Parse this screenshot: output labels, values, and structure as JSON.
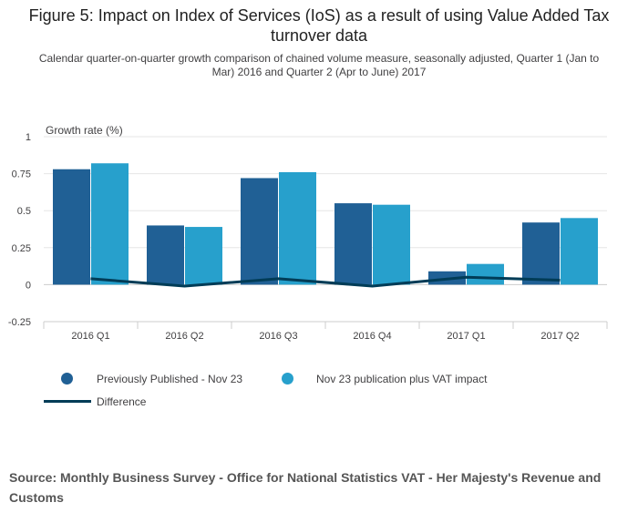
{
  "chart_data": {
    "type": "bar",
    "title": "Figure 5: Impact on Index of Services (IoS) as a result of using Value Added Tax turnover data",
    "subtitle": "Calendar quarter-on-quarter growth comparison of chained volume measure, seasonally adjusted, Quarter 1 (Jan to Mar) 2016 and Quarter 2 (Apr to June) 2017",
    "ylabel": "Growth rate (%)",
    "xlabel": "",
    "categories": [
      "2016 Q1",
      "2016 Q2",
      "2016 Q3",
      "2016 Q4",
      "2017 Q1",
      "2017 Q2"
    ],
    "series": [
      {
        "name": "Previously Published - Nov 23",
        "type": "bar",
        "color": "#206095",
        "values": [
          0.78,
          0.4,
          0.72,
          0.55,
          0.09,
          0.42
        ]
      },
      {
        "name": "Nov 23 publication plus VAT impact",
        "type": "bar",
        "color": "#27a0cc",
        "values": [
          0.82,
          0.39,
          0.76,
          0.54,
          0.14,
          0.45
        ]
      },
      {
        "name": "Difference",
        "type": "line",
        "color": "#003c57",
        "values": [
          0.04,
          -0.01,
          0.04,
          -0.01,
          0.05,
          0.03
        ]
      }
    ],
    "ylim": [
      -0.25,
      1
    ],
    "yticks": [
      "-0.25",
      "0",
      "0.25",
      "0.5",
      "0.75",
      "1"
    ],
    "ytick_values": [
      -0.25,
      0,
      0.25,
      0.5,
      0.75,
      1
    ],
    "grid": true,
    "legend_position": "bottom"
  },
  "source": "Source: Monthly Business Survey - Office for National Statistics VAT - Her Majesty's Revenue and Customs"
}
